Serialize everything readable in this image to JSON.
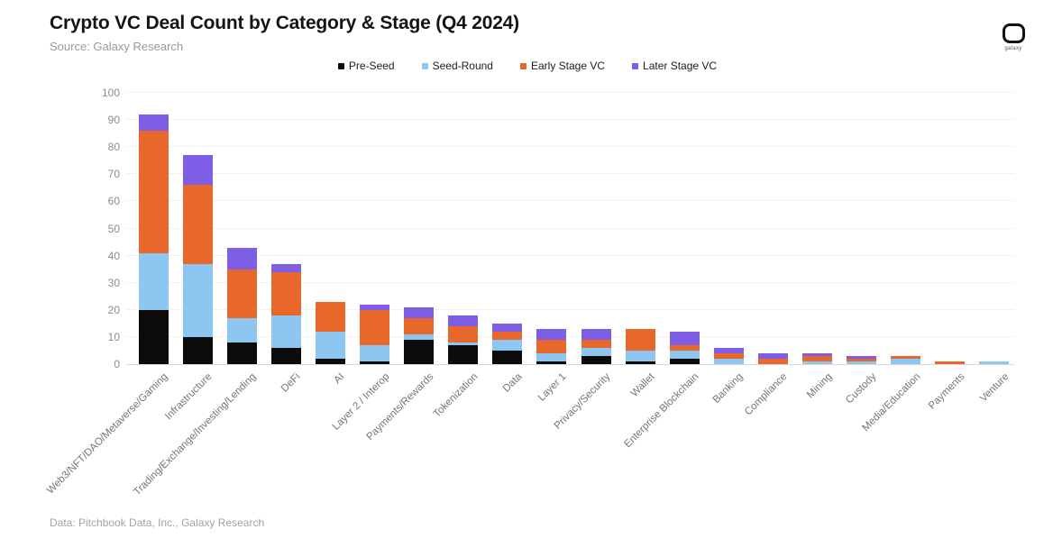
{
  "header": {
    "title": "Crypto VC Deal Count by Category & Stage (Q4 2024)",
    "source": "Source: Galaxy Research",
    "logo_text": "galaxy"
  },
  "footer": {
    "text": "Data: Pitchbook Data, Inc., Galaxy Research"
  },
  "colors": {
    "pre_seed": "#0b0b0b",
    "seed_round": "#8ec6f2",
    "early_stage_vc": "#e8682c",
    "later_stage_vc": "#7e5ee4",
    "gridline": "#f2f2f2",
    "axis_line": "#d9d9d9"
  },
  "chart_data": {
    "type": "bar",
    "stacked": true,
    "title": "Crypto VC Deal Count by Category & Stage (Q4 2024)",
    "xlabel": "",
    "ylabel": "",
    "ylim": [
      0,
      100
    ],
    "ytick_step": 10,
    "grid": true,
    "legend_position": "top",
    "categories": [
      "Web3/NFT/DAO/Metaverse/Gaming",
      "Infrastructure",
      "Trading/Exchange/Investing/Lending",
      "DeFi",
      "AI",
      "Layer 2 / Interop",
      "Payments/Rewards",
      "Tokenization",
      "Data",
      "Layer 1",
      "Privacy/Security",
      "Wallet",
      "Enterprise Blockchain",
      "Banking",
      "Compliance",
      "Mining",
      "Custody",
      "Media/Education",
      "Payments",
      "Venture"
    ],
    "series": [
      {
        "name": "Pre-Seed",
        "color": "#0b0b0b",
        "values": [
          20,
          10,
          8,
          6,
          2,
          1,
          9,
          7,
          5,
          1,
          3,
          1,
          2,
          0,
          0,
          0,
          0,
          0,
          0,
          0
        ]
      },
      {
        "name": "Seed-Round",
        "color": "#8ec6f2",
        "values": [
          21,
          27,
          9,
          12,
          10,
          6,
          2,
          1,
          4,
          3,
          3,
          4,
          3,
          2,
          0,
          1,
          1,
          2,
          0,
          1
        ]
      },
      {
        "name": "Early Stage VC",
        "color": "#e8682c",
        "values": [
          45,
          29,
          18,
          16,
          11,
          13,
          6,
          6,
          3,
          5,
          3,
          8,
          2,
          2,
          2,
          2,
          1,
          1,
          1,
          0
        ]
      },
      {
        "name": "Later Stage VC",
        "color": "#7e5ee4",
        "values": [
          6,
          11,
          8,
          3,
          0,
          2,
          4,
          4,
          3,
          4,
          4,
          0,
          5,
          2,
          2,
          1,
          1,
          0,
          0,
          0
        ]
      }
    ],
    "totals": [
      92,
      77,
      43,
      37,
      23,
      22,
      21,
      18,
      15,
      13,
      13,
      13,
      12,
      6,
      4,
      4,
      3,
      3,
      1,
      1
    ]
  }
}
